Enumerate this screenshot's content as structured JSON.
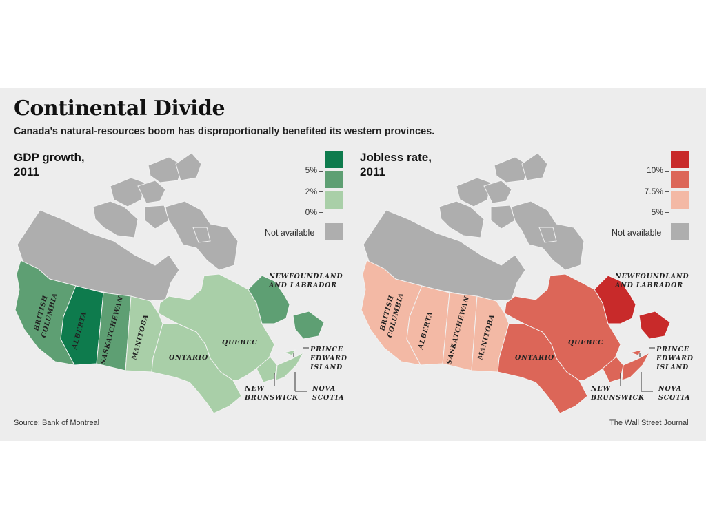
{
  "title": "Continental Divide",
  "subtitle": "Canada’s natural-resources boom has disproportionally benefited its western provinces.",
  "source": "Source: Bank of Montreal",
  "credit": "The Wall Street Journal",
  "maps": [
    {
      "heading_line1": "GDP growth,",
      "heading_line2": "2011",
      "legend": [
        {
          "label": "5%",
          "color": "#0e7b4d"
        },
        {
          "label": "2%",
          "color": "#5e9f73"
        },
        {
          "label": "0%",
          "color": "#a9cfa8"
        }
      ],
      "not_available_label": "Not available",
      "not_available_color": "#aeaeae",
      "province_colors": {
        "british_columbia": "#5e9f73",
        "alberta": "#0e7b4d",
        "saskatchewan": "#5e9f73",
        "manitoba": "#a9cfa8",
        "ontario": "#a9cfa8",
        "quebec": "#a9cfa8",
        "newfoundland_labrador": "#5e9f73",
        "new_brunswick": "#a9cfa8",
        "nova_scotia": "#a9cfa8",
        "pei": "#a9cfa8",
        "territories": "#aeaeae"
      }
    },
    {
      "heading_line1": "Jobless rate,",
      "heading_line2": "2011",
      "legend": [
        {
          "label": "10%",
          "color": "#c82a2a"
        },
        {
          "label": "7.5%",
          "color": "#dc6658"
        },
        {
          "label": "5%",
          "color": "#f3b9a5"
        }
      ],
      "not_available_label": "Not available",
      "not_available_color": "#aeaeae",
      "province_colors": {
        "british_columbia": "#f3b9a5",
        "alberta": "#f3b9a5",
        "saskatchewan": "#f3b9a5",
        "manitoba": "#f3b9a5",
        "ontario": "#dc6658",
        "quebec": "#dc6658",
        "newfoundland_labrador": "#c82a2a",
        "new_brunswick": "#dc6658",
        "nova_scotia": "#dc6658",
        "pei": "#dc6658",
        "territories": "#aeaeae"
      }
    }
  ],
  "province_labels": {
    "british_columbia": [
      "BRITISH",
      "COLUMBIA"
    ],
    "alberta": [
      "ALBERTA"
    ],
    "saskatchewan": [
      "SASKATCHEWAN"
    ],
    "manitoba": [
      "MANITOBA"
    ],
    "ontario": [
      "ONTARIO"
    ],
    "quebec": [
      "QUEBEC"
    ],
    "newfoundland_labrador": [
      "NEWFOUNDLAND",
      "AND LABRADOR"
    ],
    "pei": [
      "PRINCE",
      "EDWARD",
      "ISLAND"
    ],
    "new_brunswick": [
      "NEW",
      "BRUNSWICK"
    ],
    "nova_scotia": [
      "NOVA",
      "SCOTIA"
    ]
  }
}
